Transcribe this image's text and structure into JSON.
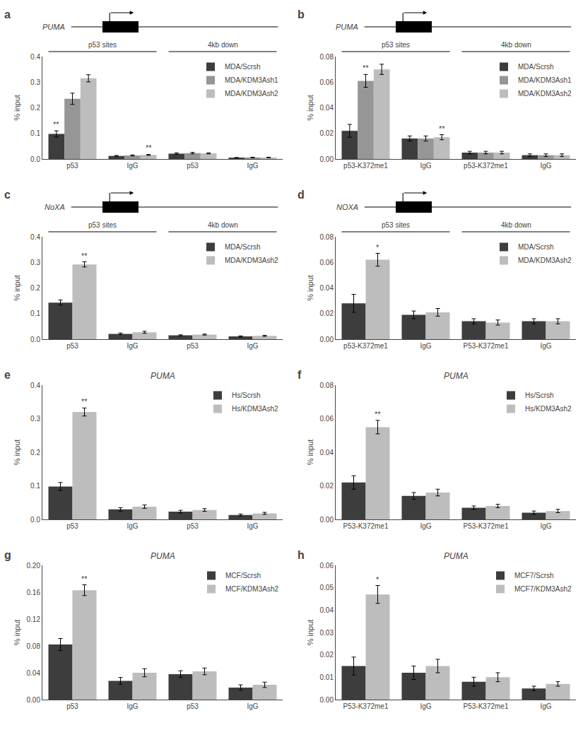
{
  "chart_data": [
    {
      "type": "bar",
      "y_label": "% input",
      "categories": [
        "p53",
        "IgG",
        "p53",
        "IgG"
      ],
      "series": [
        {
          "name": "MDA/Scrsh",
          "color": "#3d3d3d",
          "values": [
            0.098,
            0.012,
            0.021,
            0.005
          ],
          "errors": [
            0.012,
            0.002,
            0.003,
            0.001
          ]
        },
        {
          "name": "MDA/KDM3Ash1",
          "color": "#969696",
          "values": [
            0.235,
            0.014,
            0.023,
            0.006
          ],
          "errors": [
            0.022,
            0.002,
            0.003,
            0.001
          ]
        },
        {
          "name": "MDA/KDM3Ash2",
          "color": "#bdbdbd",
          "values": [
            0.315,
            0.016,
            0.022,
            0.006
          ],
          "errors": [
            0.014,
            0.002,
            0.002,
            0.001
          ]
        }
      ],
      "ylim": [
        0,
        0.4
      ],
      "yticks": [
        {
          "value": 0,
          "label": "0.0"
        },
        0.1,
        0.2,
        0.3,
        0.4
      ],
      "grid": false,
      "legend": "upper right",
      "annotations": [
        {
          "text": "a",
          "type": "panel"
        },
        {
          "text": "PUMA",
          "type": "gene"
        },
        {
          "text": "p53 sites",
          "categories": [
            0,
            1
          ]
        },
        {
          "text": "4kb down",
          "categories": [
            2,
            3
          ]
        },
        {
          "text": "**",
          "category": 0,
          "series": "MDA/Scrsh"
        },
        {
          "text": "**",
          "category": 1,
          "series": "MDA/KDM3Ash2"
        }
      ]
    },
    {
      "type": "bar",
      "y_label": "% input",
      "categories": [
        "p53-K372me1",
        "IgG",
        "p53-K372me1",
        "IgG"
      ],
      "series": [
        {
          "name": "MDA/Scrsh",
          "color": "#3d3d3d",
          "values": [
            0.022,
            0.016,
            0.005,
            0.003
          ],
          "errors": [
            0.005,
            0.002,
            0.001,
            0.001
          ]
        },
        {
          "name": "MDA/KDM3Ash1",
          "color": "#969696",
          "values": [
            0.061,
            0.016,
            0.005,
            0.003
          ],
          "errors": [
            0.005,
            0.002,
            0.001,
            0.001
          ]
        },
        {
          "name": "MDA/KDM3Ash2",
          "color": "#bdbdbd",
          "values": [
            0.07,
            0.017,
            0.005,
            0.003
          ],
          "errors": [
            0.004,
            0.002,
            0.001,
            0.001
          ]
        }
      ],
      "ylim": [
        0,
        0.08
      ],
      "yticks": [
        {
          "value": 0,
          "label": "0.00"
        },
        0.02,
        0.04,
        0.06,
        0.08
      ],
      "grid": false,
      "legend": "upper right",
      "annotations": [
        {
          "text": "b",
          "type": "panel"
        },
        {
          "text": "PUMA",
          "type": "gene"
        },
        {
          "text": "p53 sites",
          "categories": [
            0,
            1
          ]
        },
        {
          "text": "4kb down",
          "categories": [
            2,
            3
          ]
        },
        {
          "text": "**",
          "category": 0,
          "series": "MDA/KDM3Ash1"
        },
        {
          "text": "**",
          "category": 1,
          "series": "MDA/KDM3Ash2"
        }
      ]
    },
    {
      "type": "bar",
      "y_label": "% input",
      "categories": [
        "p53",
        "IgG",
        "p53",
        "IgG"
      ],
      "series": [
        {
          "name": "MDA/Scrsh",
          "color": "#3d3d3d",
          "values": [
            0.143,
            0.021,
            0.015,
            0.011
          ],
          "errors": [
            0.01,
            0.003,
            0.002,
            0.002
          ]
        },
        {
          "name": "MDA/KDM3Ash2",
          "color": "#bdbdbd",
          "values": [
            0.292,
            0.027,
            0.018,
            0.013
          ],
          "errors": [
            0.01,
            0.004,
            0.002,
            0.002
          ]
        }
      ],
      "ylim": [
        0,
        0.4
      ],
      "yticks": [
        {
          "value": 0,
          "label": "0.0"
        },
        0.1,
        0.2,
        0.3,
        0.4
      ],
      "grid": false,
      "legend": "upper right",
      "annotations": [
        {
          "text": "c",
          "type": "panel"
        },
        {
          "text": "NoXA",
          "type": "gene"
        },
        {
          "text": "p53 sites",
          "categories": [
            0,
            1
          ]
        },
        {
          "text": "4kb down",
          "categories": [
            2,
            3
          ]
        },
        {
          "text": "**",
          "category": 0,
          "series": "MDA/KDM3Ash2"
        }
      ]
    },
    {
      "type": "bar",
      "y_label": "% input",
      "categories": [
        "p53-K372me1",
        "IgG",
        "P53-K372me1",
        "IgG"
      ],
      "series": [
        {
          "name": "MDA/Scrsh",
          "color": "#3d3d3d",
          "values": [
            0.028,
            0.019,
            0.014,
            0.014
          ],
          "errors": [
            0.007,
            0.003,
            0.002,
            0.002
          ]
        },
        {
          "name": "MDA/KDM3Ash2",
          "color": "#bdbdbd",
          "values": [
            0.062,
            0.021,
            0.013,
            0.014
          ],
          "errors": [
            0.005,
            0.003,
            0.002,
            0.002
          ]
        }
      ],
      "ylim": [
        0,
        0.08
      ],
      "yticks": [
        {
          "value": 0,
          "label": "0.00"
        },
        0.02,
        0.04,
        0.06,
        0.08
      ],
      "grid": false,
      "legend": "upper right",
      "annotations": [
        {
          "text": "d",
          "type": "panel"
        },
        {
          "text": "NOXA",
          "type": "gene"
        },
        {
          "text": "p53 sites",
          "categories": [
            0,
            1
          ]
        },
        {
          "text": "4kb down",
          "categories": [
            2,
            3
          ]
        },
        {
          "text": "*",
          "category": 0,
          "series": "MDA/KDM3Ash2"
        }
      ]
    },
    {
      "type": "bar",
      "title": "PUMA",
      "y_label": "% input",
      "categories": [
        "p53",
        "IgG",
        "p53",
        "IgG"
      ],
      "series": [
        {
          "name": "Hs/Scrsh",
          "color": "#3d3d3d",
          "values": [
            0.098,
            0.03,
            0.023,
            0.013
          ],
          "errors": [
            0.012,
            0.005,
            0.004,
            0.003
          ]
        },
        {
          "name": "Hs/KDM3Ash2",
          "color": "#bdbdbd",
          "values": [
            0.32,
            0.038,
            0.028,
            0.018
          ],
          "errors": [
            0.012,
            0.005,
            0.004,
            0.003
          ]
        }
      ],
      "ylim": [
        0,
        0.4
      ],
      "yticks": [
        {
          "value": 0,
          "label": "0.0"
        },
        0.1,
        0.2,
        0.3,
        0.4
      ],
      "grid": false,
      "legend": "upper right",
      "annotations": [
        {
          "text": "e",
          "type": "panel"
        },
        {
          "text": "**",
          "category": 0,
          "series": "Hs/KDM3Ash2"
        }
      ]
    },
    {
      "type": "bar",
      "title": "PUMA",
      "y_label": "% input",
      "categories": [
        "P53-K372me1",
        "IgG",
        "P53-K372me1",
        "IgG"
      ],
      "series": [
        {
          "name": "Hs/Scrsh",
          "color": "#3d3d3d",
          "values": [
            0.022,
            0.014,
            0.007,
            0.004
          ],
          "errors": [
            0.004,
            0.002,
            0.001,
            0.001
          ]
        },
        {
          "name": "Hs/KDM3Ash2",
          "color": "#bdbdbd",
          "values": [
            0.055,
            0.016,
            0.008,
            0.005
          ],
          "errors": [
            0.004,
            0.002,
            0.001,
            0.001
          ]
        }
      ],
      "ylim": [
        0,
        0.08
      ],
      "yticks": [
        {
          "value": 0,
          "label": "0.00"
        },
        0.02,
        0.04,
        0.06,
        0.08
      ],
      "grid": false,
      "legend": "upper right",
      "annotations": [
        {
          "text": "f",
          "type": "panel"
        },
        {
          "text": "**",
          "category": 0,
          "series": "Hs/KDM3Ash2"
        }
      ]
    },
    {
      "type": "bar",
      "title": "PUMA",
      "y_label": "% input",
      "categories": [
        "p53",
        "IgG",
        "p53",
        "IgG"
      ],
      "series": [
        {
          "name": "MCF/Scrsh",
          "color": "#3d3d3d",
          "values": [
            0.082,
            0.028,
            0.038,
            0.018
          ],
          "errors": [
            0.009,
            0.005,
            0.005,
            0.004
          ]
        },
        {
          "name": "MCF/KDM3Ash2",
          "color": "#bdbdbd",
          "values": [
            0.163,
            0.04,
            0.042,
            0.022
          ],
          "errors": [
            0.008,
            0.006,
            0.005,
            0.004
          ]
        }
      ],
      "ylim": [
        0,
        0.2
      ],
      "yticks": [
        {
          "value": 0,
          "label": "0.00"
        },
        0.04,
        0.08,
        0.12,
        0.16,
        {
          "value": 0.2,
          "label": "0.20"
        }
      ],
      "grid": false,
      "legend": "upper right",
      "annotations": [
        {
          "text": "g",
          "type": "panel"
        },
        {
          "text": "**",
          "category": 0,
          "series": "MCF/KDM3Ash2"
        }
      ]
    },
    {
      "type": "bar",
      "title": "PUMA",
      "y_label": "% input",
      "categories": [
        "P53-K372me1",
        "IgG",
        "P53-K372me1",
        "IgG"
      ],
      "series": [
        {
          "name": "MCF7/Scrsh",
          "color": "#3d3d3d",
          "values": [
            0.015,
            0.012,
            0.008,
            0.005
          ],
          "errors": [
            0.004,
            0.003,
            0.002,
            0.001
          ]
        },
        {
          "name": "MCF7/KDM3Ash2",
          "color": "#bdbdbd",
          "values": [
            0.047,
            0.015,
            0.01,
            0.007
          ],
          "errors": [
            0.004,
            0.003,
            0.002,
            0.001
          ]
        }
      ],
      "ylim": [
        0,
        0.06
      ],
      "yticks": [
        {
          "value": 0,
          "label": "0.00"
        },
        0.01,
        0.02,
        0.03,
        0.04,
        0.05,
        0.06
      ],
      "grid": false,
      "legend": "upper right",
      "annotations": [
        {
          "text": "h",
          "type": "panel"
        },
        {
          "text": "*",
          "category": 0,
          "series": "MCF7/KDM3Ash2"
        }
      ]
    }
  ]
}
